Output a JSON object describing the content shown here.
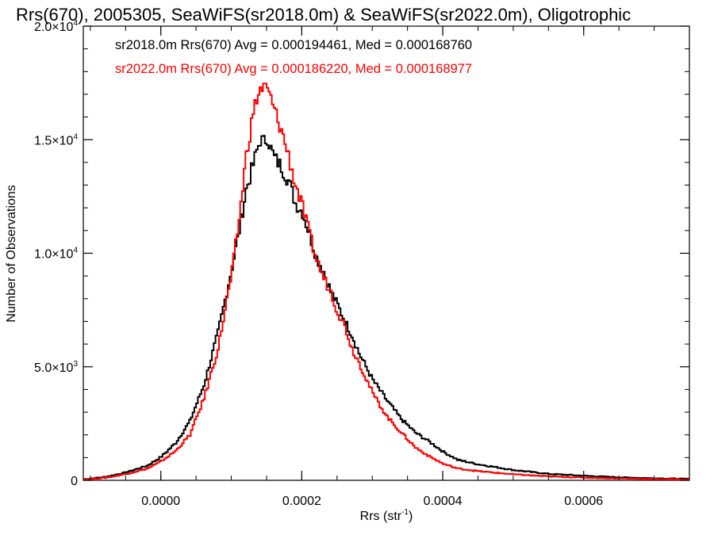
{
  "chart_data": {
    "type": "line",
    "title": "Rrs(670), 2005305, SeaWiFS(sr2018.0m) & SeaWiFS(sr2022.0m), Oligotrophic",
    "xlabel": "Rrs (str",
    "xlabel_sup": "-1",
    "xlabel_suffix": ")",
    "ylabel": "Number of Observations",
    "xlim": [
      -0.00011,
      0.00075
    ],
    "ylim": [
      0,
      20000
    ],
    "x_ticks": [
      {
        "value": 0.0,
        "label": "0.0000"
      },
      {
        "value": 0.0002,
        "label": "0.0002"
      },
      {
        "value": 0.0004,
        "label": "0.0004"
      },
      {
        "value": 0.0006,
        "label": "0.0006"
      }
    ],
    "y_ticks": [
      {
        "value": 0,
        "label": "0",
        "sup": ""
      },
      {
        "value": 5000,
        "label": "5.0×10",
        "sup": "3"
      },
      {
        "value": 10000,
        "label": "1.0×10",
        "sup": "4"
      },
      {
        "value": 15000,
        "label": "1.5×10",
        "sup": "4"
      },
      {
        "value": 20000,
        "label": "2.0×10",
        "sup": "4"
      }
    ],
    "grid": false,
    "legend_position": "top-left",
    "series": [
      {
        "name": "sr2018.0m",
        "color": "#000000",
        "legend_text": "sr2018.0m Rrs(670) Avg = 0.000194461, Med = 0.000168760",
        "x": [
          -0.00011,
          -8e-05,
          -5e-05,
          -2e-05,
          0.0,
          2e-05,
          4e-05,
          6e-05,
          8e-05,
          0.0001,
          0.00011,
          0.00012,
          0.00013,
          0.000135,
          0.00014,
          0.000145,
          0.00015,
          0.000155,
          0.00016,
          0.00017,
          0.00018,
          0.00019,
          0.0002,
          0.00021,
          0.00022,
          0.00023,
          0.00024,
          0.00025,
          0.00026,
          0.00027,
          0.00028,
          0.0003,
          0.00032,
          0.00034,
          0.00036,
          0.00038,
          0.0004,
          0.00042,
          0.00045,
          0.0005,
          0.00055,
          0.0006,
          0.00065,
          0.0007,
          0.00075
        ],
        "y": [
          50,
          150,
          350,
          650,
          1050,
          1650,
          2600,
          4200,
          6500,
          9400,
          11000,
          12800,
          13900,
          14500,
          15000,
          14900,
          15100,
          14600,
          14200,
          13800,
          13200,
          12200,
          11800,
          10800,
          9800,
          9200,
          8300,
          7700,
          7000,
          6400,
          5600,
          4400,
          3500,
          2700,
          2100,
          1700,
          1250,
          900,
          700,
          450,
          280,
          200,
          130,
          90,
          60
        ]
      },
      {
        "name": "sr2022.0m",
        "color": "#ff0000",
        "legend_text": "sr2022.0m Rrs(670) Avg = 0.000186220, Med = 0.000168977",
        "x": [
          -0.00011,
          -8e-05,
          -5e-05,
          -2e-05,
          0.0,
          2e-05,
          4e-05,
          6e-05,
          8e-05,
          0.0001,
          0.00011,
          0.00012,
          0.00013,
          0.000135,
          0.00014,
          0.000145,
          0.00015,
          0.000155,
          0.00016,
          0.00017,
          0.00018,
          0.00019,
          0.0002,
          0.00021,
          0.00022,
          0.00023,
          0.00024,
          0.00025,
          0.00026,
          0.00027,
          0.00028,
          0.0003,
          0.00032,
          0.00034,
          0.00036,
          0.00038,
          0.0004,
          0.00042,
          0.00045,
          0.0005,
          0.00055,
          0.0006,
          0.00065,
          0.0007,
          0.00075
        ],
        "y": [
          40,
          110,
          280,
          520,
          850,
          1300,
          2000,
          3600,
          5800,
          9200,
          11500,
          14300,
          16200,
          16800,
          17200,
          17300,
          17200,
          16800,
          16300,
          15400,
          14300,
          13000,
          12000,
          10800,
          9700,
          8900,
          8300,
          7400,
          6800,
          5800,
          5200,
          3800,
          2800,
          2100,
          1450,
          1050,
          720,
          520,
          400,
          260,
          170,
          120,
          80,
          55,
          40
        ]
      }
    ]
  }
}
